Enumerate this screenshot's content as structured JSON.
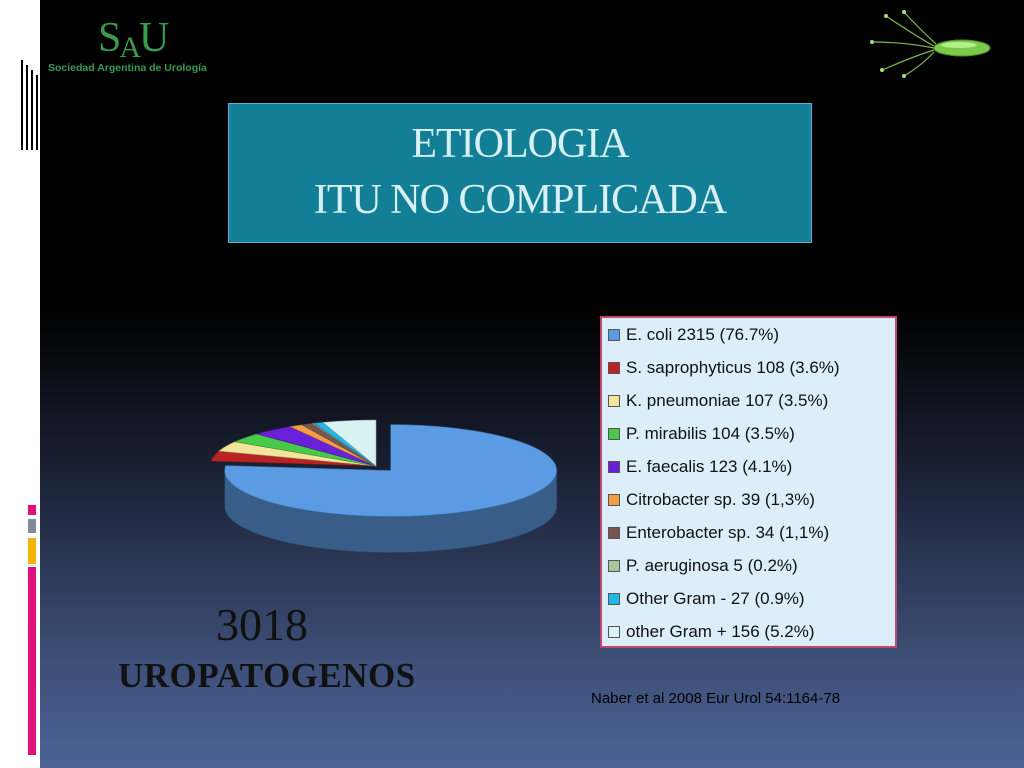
{
  "logo": {
    "mark": "SAU",
    "text": "Sociedad Argentina de Urología"
  },
  "title": {
    "line1": "ETIOLOGIA",
    "line2": "ITU NO COMPLICADA"
  },
  "total": {
    "value": "3018",
    "label": "UROPATOGENOS"
  },
  "citation": "Naber et al 2008 Eur Urol 54:1164-78",
  "chart_data": {
    "type": "pie",
    "labels": [
      "E. coli",
      "S. saprophyticus",
      "K. pneumoniae",
      "P. mirabilis",
      "E. faecalis",
      "Citrobacter sp.",
      "Enterobacter sp.",
      "P. aeruginosa",
      "Other Gram -",
      "other Gram +"
    ],
    "values": [
      2315,
      108,
      107,
      104,
      123,
      39,
      34,
      5,
      27,
      156
    ],
    "legend_labels": [
      "E. coli   2315 (76.7%)",
      "S. saprophyticus  108 (3.6%)",
      "K. pneumoniae   107 (3.5%)",
      "P. mirabilis    104 (3.5%)",
      "E. faecalis  123 (4.1%)",
      "Citrobacter sp.   39 (1,3%)",
      "Enterobacter sp.  34 (1,1%)",
      "P. aeruginosa   5 (0.2%)",
      "Other Gram -   27 (0.9%)",
      "other Gram +  156 (5.2%)"
    ],
    "colors": [
      "#5b9be3",
      "#b82326",
      "#f2e59a",
      "#49c94a",
      "#6a1fd8",
      "#f29e45",
      "#7a5550",
      "#a8c7a0",
      "#1fb8e8",
      "#d8f3f2"
    ],
    "exploded": "E. coli",
    "legend_position": "right"
  }
}
